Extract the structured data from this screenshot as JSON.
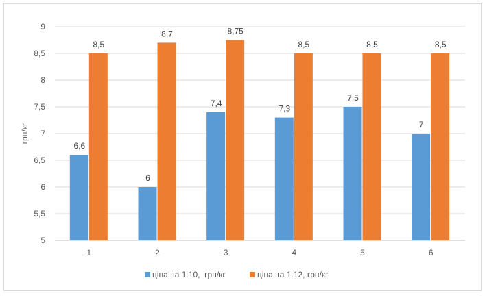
{
  "chart_data": {
    "type": "bar",
    "title": "",
    "xlabel": "",
    "ylabel": "грн/кг",
    "ylim": [
      5,
      9
    ],
    "ytick_step": 0.5,
    "yticks": [
      "5",
      "5,5",
      "6",
      "6,5",
      "7",
      "7,5",
      "8",
      "8,5",
      "9"
    ],
    "categories": [
      "1",
      "2",
      "3",
      "4",
      "5",
      "6"
    ],
    "grid": true,
    "legend_position": "bottom",
    "series": [
      {
        "name": "ціна на 1.10,  грн/кг",
        "color": "#5b9bd5",
        "values": [
          6.6,
          6,
          7.4,
          7.3,
          7.5,
          7
        ],
        "labels": [
          "6,6",
          "6",
          "7,4",
          "7,3",
          "7,5",
          "7"
        ]
      },
      {
        "name": "ціна на 1.12, грн/кг",
        "color": "#ed7d31",
        "values": [
          8.5,
          8.7,
          8.75,
          8.5,
          8.5,
          8.5
        ],
        "labels": [
          "8,5",
          "8,7",
          "8,75",
          "8,5",
          "8,5",
          "8,5"
        ]
      }
    ]
  }
}
